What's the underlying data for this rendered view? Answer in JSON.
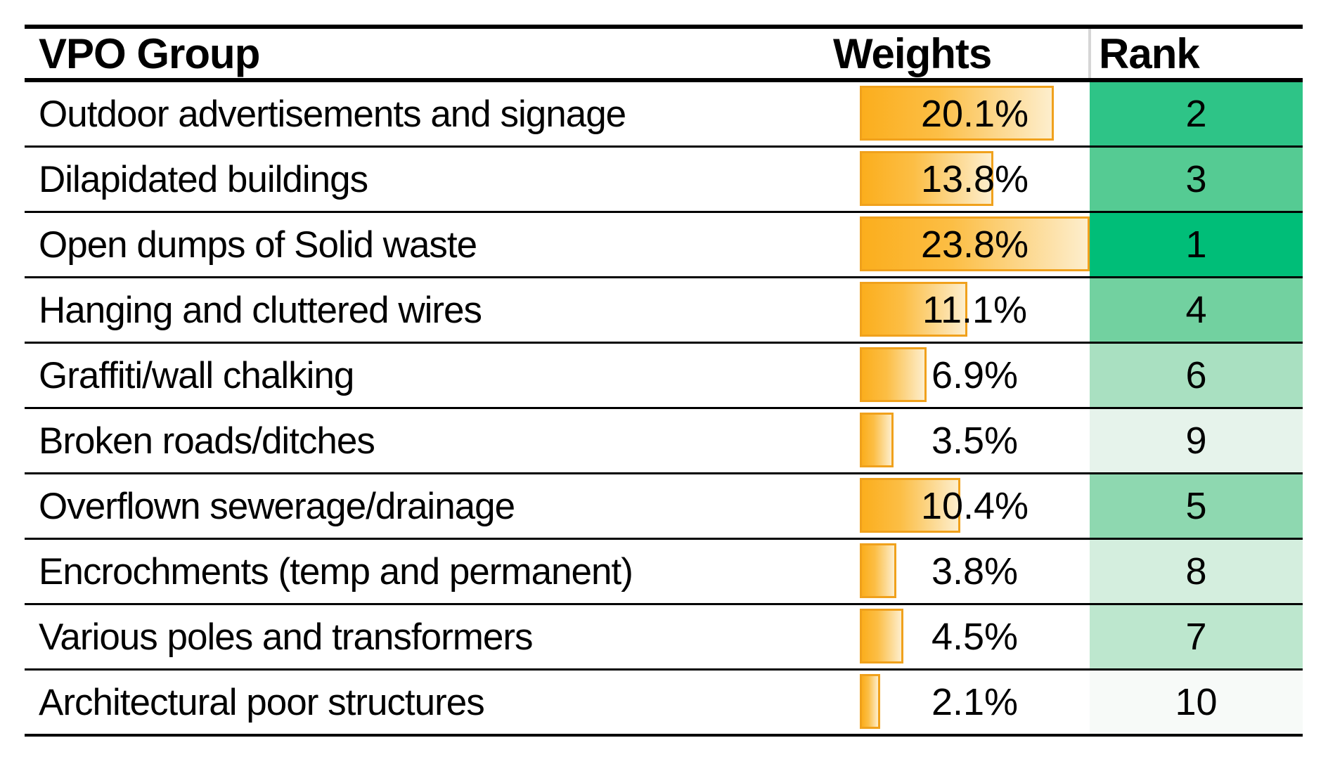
{
  "table": {
    "headers": {
      "group": "VPO Group",
      "weights": "Weights",
      "rank": "Rank"
    },
    "bar_scale_max_percent": 23.8,
    "bar_fill_start": "#fbae1d",
    "bar_fill_end": "#fdeecd",
    "bar_border_color": "#f0a11c",
    "rows": [
      {
        "group": "Outdoor advertisements and signage",
        "weight": "20.1%",
        "weight_value": 20.1,
        "rank": "2",
        "rank_color": "#2ec487"
      },
      {
        "group": "Dilapidated buildings",
        "weight": "13.8%",
        "weight_value": 13.8,
        "rank": "3",
        "rank_color": "#55cb93"
      },
      {
        "group": "Open dumps of Solid waste",
        "weight": "23.8%",
        "weight_value": 23.8,
        "rank": "1",
        "rank_color": "#00be78"
      },
      {
        "group": "Hanging and cluttered wires",
        "weight": "11.1%",
        "weight_value": 11.1,
        "rank": "4",
        "rank_color": "#72d1a0"
      },
      {
        "group": "Graffiti/wall chalking",
        "weight": "6.9%",
        "weight_value": 6.9,
        "rank": "6",
        "rank_color": "#a9e0c1"
      },
      {
        "group": "Broken roads/ditches",
        "weight": "3.5%",
        "weight_value": 3.5,
        "rank": "9",
        "rank_color": "#e6f3eb"
      },
      {
        "group": "Overflown sewerage/drainage",
        "weight": "10.4%",
        "weight_value": 10.4,
        "rank": "5",
        "rank_color": "#8ed8b0"
      },
      {
        "group": "Encrochments (temp and permanent)",
        "weight": "3.8%",
        "weight_value": 3.8,
        "rank": "8",
        "rank_color": "#d4eede"
      },
      {
        "group": "Various poles and transformers",
        "weight": "4.5%",
        "weight_value": 4.5,
        "rank": "7",
        "rank_color": "#bde7ce"
      },
      {
        "group": "Architectural poor structures",
        "weight": "2.1%",
        "weight_value": 2.1,
        "rank": "10",
        "rank_color": "#f7faf8"
      }
    ]
  },
  "chart_data": {
    "type": "table",
    "title": "VPO Group weights and ranks",
    "columns": [
      "VPO Group",
      "Weights",
      "Rank"
    ],
    "categories": [
      "Outdoor advertisements and signage",
      "Dilapidated buildings",
      "Open dumps of Solid waste",
      "Hanging and cluttered wires",
      "Graffiti/wall chalking",
      "Broken roads/ditches",
      "Overflown sewerage/drainage",
      "Encrochments (temp and permanent)",
      "Various poles and transformers",
      "Architectural poor structures"
    ],
    "series": [
      {
        "name": "Weights (%)",
        "values": [
          20.1,
          13.8,
          23.8,
          11.1,
          6.9,
          3.5,
          10.4,
          3.8,
          4.5,
          2.1
        ]
      },
      {
        "name": "Rank",
        "values": [
          2,
          3,
          1,
          4,
          6,
          9,
          5,
          8,
          7,
          10
        ]
      }
    ],
    "layout_hints": {
      "weights_rendered_as": "orange gradient data bars scaled 0 to 23.8%",
      "rank_rendered_as": "green color scale, darkest = rank 1",
      "grid": "horizontal black rules only, thick top and header rules"
    }
  }
}
